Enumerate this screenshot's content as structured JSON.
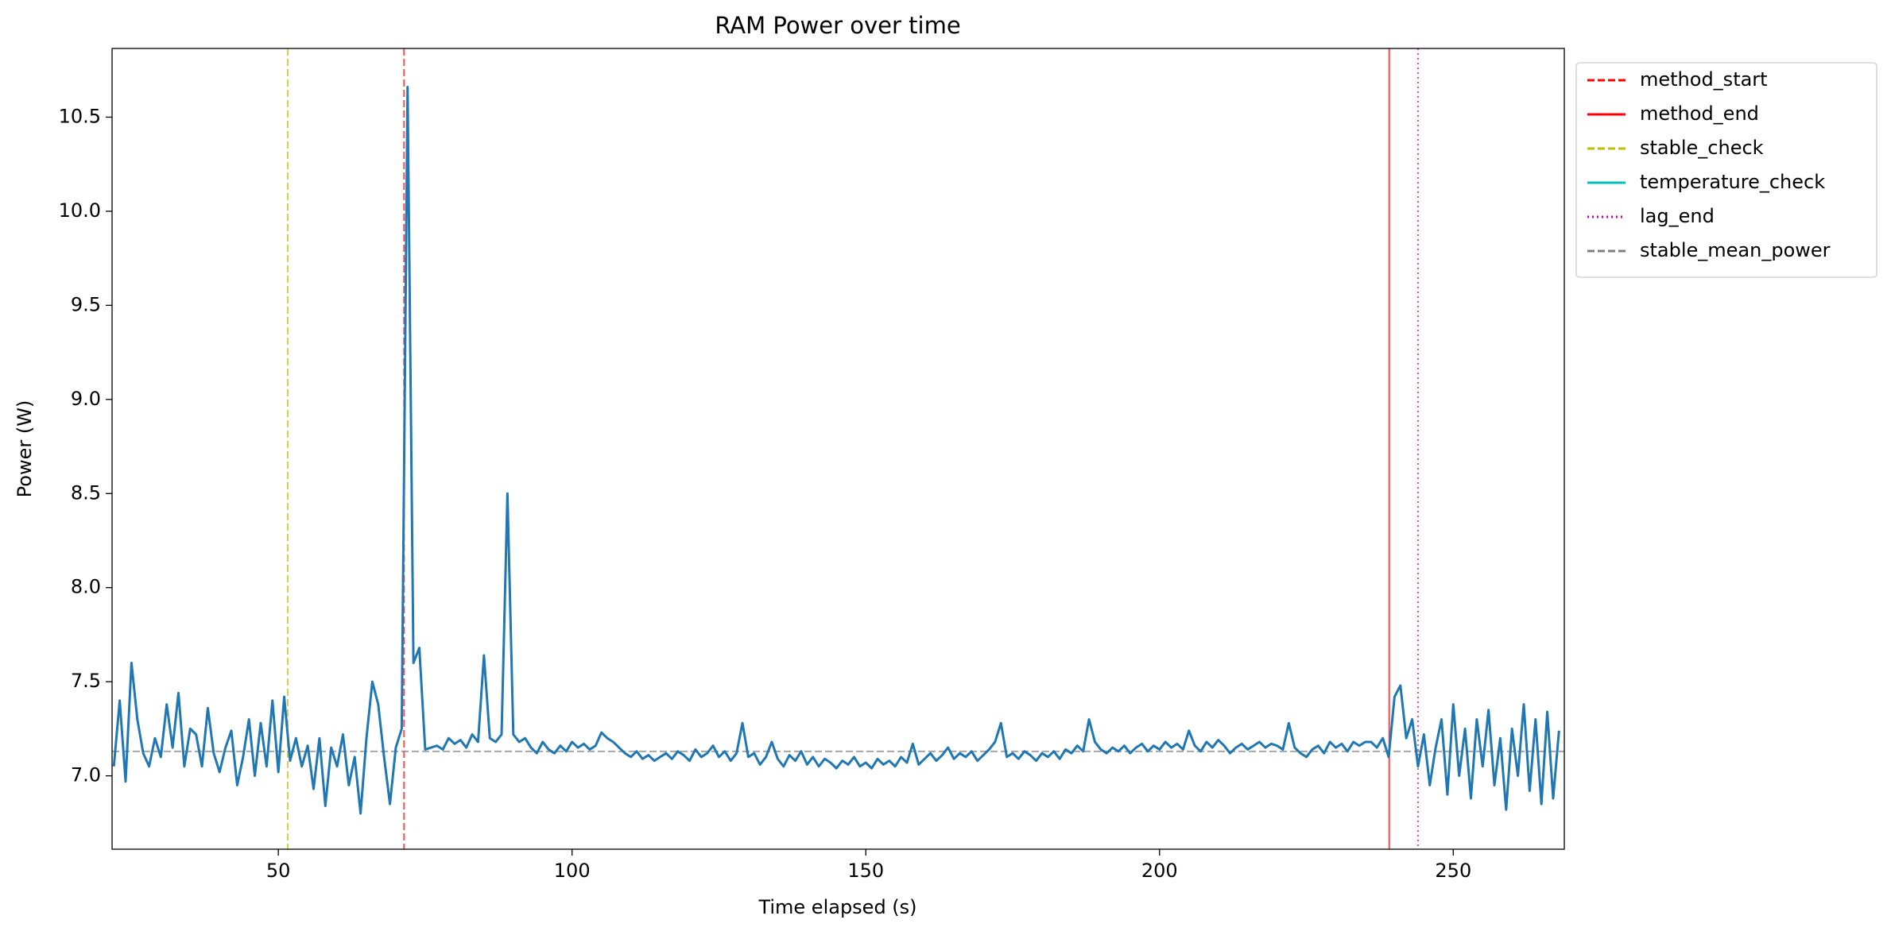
{
  "chart_data": {
    "type": "line",
    "title": "RAM Power over time",
    "xlabel": "Time elapsed (s)",
    "ylabel": "Power (W)",
    "xlim": [
      21.7,
      268.9
    ],
    "ylim": [
      6.61,
      10.865
    ],
    "xticks": [
      50,
      100,
      150,
      200,
      250
    ],
    "yticks": [
      {
        "value": 7,
        "label": "7.0"
      },
      7.5,
      {
        "value": 8,
        "label": "8.0"
      },
      8.5,
      {
        "value": 9,
        "label": "9.0"
      },
      9.5,
      {
        "value": 10,
        "label": "10.0"
      },
      10.5
    ],
    "legend": "outside-upper-right",
    "series": [
      {
        "color": "#1f77b4",
        "x": [
          22,
          23,
          24,
          25,
          26,
          27,
          28,
          29,
          30,
          31,
          32,
          33,
          34,
          35,
          36,
          37,
          38,
          39,
          40,
          41,
          42,
          43,
          44,
          45,
          46,
          47,
          48,
          49,
          50,
          51,
          52,
          53,
          54,
          55,
          56,
          57,
          58,
          59,
          60,
          61,
          62,
          63,
          64,
          65,
          66,
          67,
          68,
          69,
          70,
          71,
          72,
          73,
          74,
          75,
          76,
          77,
          78,
          79,
          80,
          81,
          82,
          83,
          84,
          85,
          86,
          87,
          88,
          89,
          90,
          91,
          92,
          93,
          94,
          95,
          96,
          97,
          98,
          99,
          100,
          101,
          102,
          103,
          104,
          105,
          106,
          107,
          108,
          109,
          110,
          111,
          112,
          113,
          114,
          115,
          116,
          117,
          118,
          119,
          120,
          121,
          122,
          123,
          124,
          125,
          126,
          127,
          128,
          129,
          130,
          131,
          132,
          133,
          134,
          135,
          136,
          137,
          138,
          139,
          140,
          141,
          142,
          143,
          144,
          145,
          146,
          147,
          148,
          149,
          150,
          151,
          152,
          153,
          154,
          155,
          156,
          157,
          158,
          159,
          160,
          161,
          162,
          163,
          164,
          165,
          166,
          167,
          168,
          169,
          170,
          171,
          172,
          173,
          174,
          175,
          176,
          177,
          178,
          179,
          180,
          181,
          182,
          183,
          184,
          185,
          186,
          187,
          188,
          189,
          190,
          191,
          192,
          193,
          194,
          195,
          196,
          197,
          198,
          199,
          200,
          201,
          202,
          203,
          204,
          205,
          206,
          207,
          208,
          209,
          210,
          211,
          212,
          213,
          214,
          215,
          216,
          217,
          218,
          219,
          220,
          221,
          222,
          223,
          224,
          225,
          226,
          227,
          228,
          229,
          230,
          231,
          232,
          233,
          234,
          235,
          236,
          237,
          238,
          239,
          240,
          241,
          242,
          243,
          244,
          245,
          246,
          247,
          248,
          249,
          250,
          251,
          252,
          253,
          254,
          255,
          256,
          257,
          258,
          259,
          260,
          261,
          262,
          263,
          264,
          265,
          266,
          267,
          268
        ],
        "values": [
          7.05,
          7.4,
          6.97,
          7.6,
          7.3,
          7.12,
          7.05,
          7.2,
          7.1,
          7.38,
          7.15,
          7.44,
          7.05,
          7.25,
          7.22,
          7.05,
          7.36,
          7.12,
          7.02,
          7.15,
          7.24,
          6.95,
          7.1,
          7.3,
          7.0,
          7.28,
          7.05,
          7.4,
          7.02,
          7.42,
          7.08,
          7.2,
          7.05,
          7.16,
          6.93,
          7.2,
          6.84,
          7.15,
          7.05,
          7.22,
          6.95,
          7.1,
          6.8,
          7.2,
          7.5,
          7.38,
          7.1,
          6.85,
          7.15,
          7.25,
          10.66,
          7.6,
          7.68,
          7.14,
          7.15,
          7.16,
          7.14,
          7.2,
          7.17,
          7.19,
          7.15,
          7.22,
          7.18,
          7.64,
          7.2,
          7.18,
          7.22,
          8.5,
          7.22,
          7.18,
          7.2,
          7.15,
          7.12,
          7.18,
          7.14,
          7.12,
          7.16,
          7.13,
          7.18,
          7.15,
          7.17,
          7.14,
          7.16,
          7.23,
          7.2,
          7.18,
          7.15,
          7.12,
          7.1,
          7.13,
          7.09,
          7.11,
          7.08,
          7.1,
          7.12,
          7.09,
          7.13,
          7.11,
          7.08,
          7.14,
          7.1,
          7.12,
          7.16,
          7.1,
          7.13,
          7.08,
          7.12,
          7.28,
          7.1,
          7.12,
          7.06,
          7.1,
          7.18,
          7.09,
          7.05,
          7.11,
          7.08,
          7.13,
          7.06,
          7.1,
          7.05,
          7.09,
          7.07,
          7.04,
          7.08,
          7.06,
          7.1,
          7.05,
          7.07,
          7.04,
          7.09,
          7.06,
          7.08,
          7.05,
          7.1,
          7.07,
          7.17,
          7.06,
          7.09,
          7.12,
          7.08,
          7.11,
          7.15,
          7.09,
          7.12,
          7.1,
          7.13,
          7.08,
          7.11,
          7.14,
          7.18,
          7.28,
          7.1,
          7.12,
          7.09,
          7.13,
          7.11,
          7.08,
          7.12,
          7.1,
          7.13,
          7.09,
          7.14,
          7.12,
          7.16,
          7.13,
          7.3,
          7.18,
          7.14,
          7.12,
          7.15,
          7.13,
          7.16,
          7.12,
          7.15,
          7.17,
          7.13,
          7.16,
          7.14,
          7.18,
          7.15,
          7.17,
          7.14,
          7.24,
          7.16,
          7.13,
          7.18,
          7.15,
          7.19,
          7.16,
          7.12,
          7.15,
          7.17,
          7.14,
          7.16,
          7.18,
          7.15,
          7.17,
          7.16,
          7.14,
          7.28,
          7.15,
          7.12,
          7.1,
          7.14,
          7.16,
          7.12,
          7.18,
          7.15,
          7.17,
          7.13,
          7.18,
          7.16,
          7.18,
          7.18,
          7.15,
          7.2,
          7.1,
          7.42,
          7.48,
          7.2,
          7.3,
          7.05,
          7.22,
          6.95,
          7.15,
          7.3,
          6.9,
          7.38,
          7.0,
          7.25,
          6.88,
          7.3,
          7.05,
          7.35,
          6.95,
          7.2,
          6.82,
          7.25,
          7.0,
          7.38,
          6.92,
          7.3,
          6.85,
          7.34,
          6.88,
          7.24
        ]
      }
    ],
    "events": [
      {
        "name": "method_start",
        "color": "#ff0000",
        "style": "dashed",
        "x": 71.4
      },
      {
        "name": "method_end",
        "color": "#ff0000",
        "style": "solid",
        "x": 239.1
      },
      {
        "name": "stable_check",
        "color": "#bfbf00",
        "style": "dashed",
        "x": 51.6
      },
      {
        "name": "temperature_check",
        "color": "#00bfbf",
        "style": "solid"
      },
      {
        "name": "lag_end",
        "color": "#bf00bf",
        "style": "dotted",
        "x": 244.0
      },
      {
        "name": "stable_mean_power",
        "color": "#808080",
        "style": "dashed",
        "y": 7.13
      }
    ]
  }
}
